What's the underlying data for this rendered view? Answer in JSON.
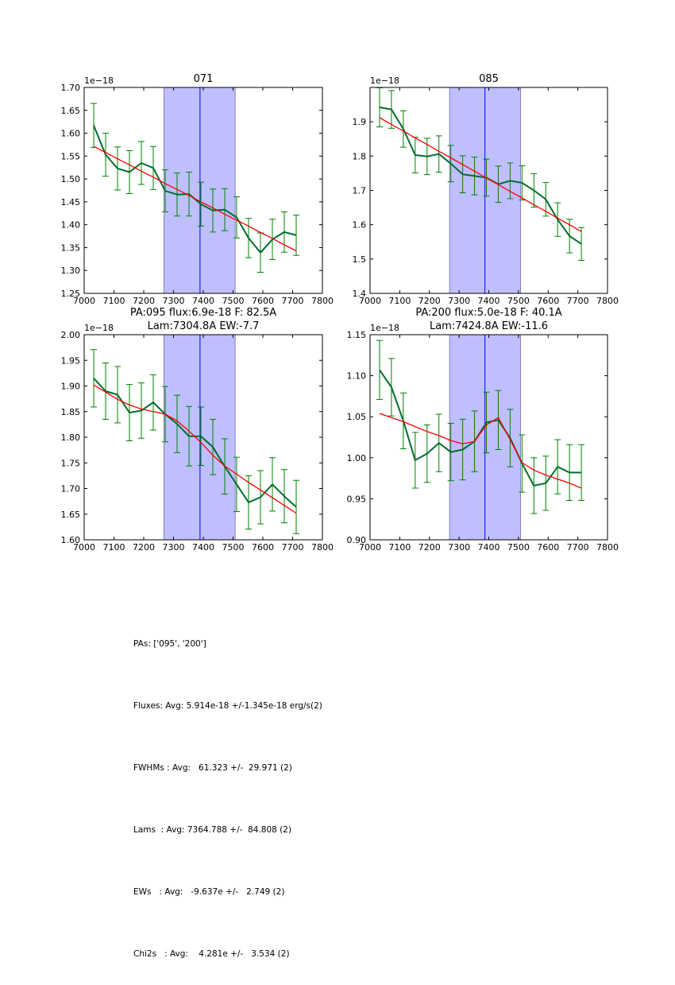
{
  "chart_data": [
    {
      "type": "line",
      "title": "071",
      "subtitle": "",
      "offset_label": "1e−18",
      "xlabel": "",
      "ylabel": "",
      "xlim": [
        7000,
        7800
      ],
      "ylim": [
        1.25,
        1.7
      ],
      "xticks": [
        "7000",
        "7100",
        "7200",
        "7300",
        "7400",
        "7500",
        "7600",
        "7700",
        "7800"
      ],
      "yticks": [
        "1.25",
        "1.30",
        "1.35",
        "1.40",
        "1.45",
        "1.50",
        "1.55",
        "1.60",
        "1.65",
        "1.70"
      ],
      "band": [
        7268,
        7507
      ],
      "center_line": 7389,
      "x": [
        7032,
        7072,
        7112,
        7152,
        7192,
        7232,
        7272,
        7312,
        7352,
        7392,
        7432,
        7472,
        7512,
        7552,
        7592,
        7632,
        7672,
        7712
      ],
      "series": [
        {
          "name": "data",
          "color": "#006e2e",
          "values": [
            1.617,
            1.553,
            1.523,
            1.515,
            1.535,
            1.524,
            1.474,
            1.466,
            1.467,
            1.445,
            1.431,
            1.433,
            1.416,
            1.371,
            1.339,
            1.368,
            1.384,
            1.377
          ],
          "errors": [
            0.048,
            0.047,
            0.047,
            0.047,
            0.047,
            0.047,
            0.046,
            0.047,
            0.048,
            0.048,
            0.047,
            0.046,
            0.045,
            0.043,
            0.043,
            0.044,
            0.044,
            0.044
          ]
        },
        {
          "name": "fit",
          "color": "#ff0000",
          "values": [
            1.571,
            1.558,
            1.544,
            1.531,
            1.517,
            1.504,
            1.49,
            1.477,
            1.464,
            1.45,
            1.437,
            1.423,
            1.41,
            1.397,
            1.383,
            1.37,
            1.356,
            1.343
          ]
        }
      ]
    },
    {
      "type": "line",
      "title": "085",
      "subtitle": "",
      "offset_label": "1e−18",
      "xlabel": "",
      "ylabel": "",
      "xlim": [
        7000,
        7800
      ],
      "ylim": [
        1.4,
        2.0
      ],
      "xticks": [
        "7000",
        "7100",
        "7200",
        "7300",
        "7400",
        "7500",
        "7600",
        "7700",
        "7800"
      ],
      "yticks": [
        "1.4",
        "1.5",
        "1.6",
        "1.7",
        "1.8",
        "1.9"
      ],
      "band": [
        7268,
        7507
      ],
      "center_line": 7387,
      "x": [
        7032,
        7072,
        7112,
        7152,
        7192,
        7232,
        7272,
        7312,
        7352,
        7392,
        7432,
        7472,
        7512,
        7552,
        7592,
        7632,
        7672,
        7712
      ],
      "series": [
        {
          "name": "data",
          "color": "#006e2e",
          "values": [
            1.942,
            1.936,
            1.879,
            1.803,
            1.799,
            1.806,
            1.778,
            1.747,
            1.742,
            1.737,
            1.718,
            1.728,
            1.722,
            1.7,
            1.674,
            1.615,
            1.567,
            1.544
          ],
          "errors": [
            0.057,
            0.055,
            0.053,
            0.052,
            0.053,
            0.053,
            0.053,
            0.054,
            0.055,
            0.054,
            0.053,
            0.052,
            0.05,
            0.049,
            0.049,
            0.049,
            0.049,
            0.048
          ]
        },
        {
          "name": "fit",
          "color": "#ff0000",
          "values": [
            1.912,
            1.892,
            1.873,
            1.853,
            1.834,
            1.814,
            1.795,
            1.775,
            1.756,
            1.736,
            1.717,
            1.697,
            1.678,
            1.658,
            1.639,
            1.619,
            1.6,
            1.58
          ]
        }
      ]
    },
    {
      "type": "line",
      "title": "PA:095 flux:6.9e-18 F: 82.5A",
      "subtitle": "Lam:7304.8A EW:-7.7",
      "offset_label": "1e−18",
      "xlabel": "",
      "ylabel": "",
      "xlim": [
        7000,
        7800
      ],
      "ylim": [
        1.6,
        2.0
      ],
      "xticks": [
        "7000",
        "7100",
        "7200",
        "7300",
        "7400",
        "7500",
        "7600",
        "7700",
        "7800"
      ],
      "yticks": [
        "1.60",
        "1.65",
        "1.70",
        "1.75",
        "1.80",
        "1.85",
        "1.90",
        "1.95",
        "2.00"
      ],
      "band": [
        7268,
        7507
      ],
      "center_line": 7389,
      "x": [
        7032,
        7072,
        7112,
        7152,
        7192,
        7232,
        7272,
        7312,
        7352,
        7392,
        7432,
        7472,
        7512,
        7552,
        7592,
        7632,
        7672,
        7712
      ],
      "series": [
        {
          "name": "data",
          "color": "#006e2e",
          "values": [
            1.915,
            1.89,
            1.883,
            1.848,
            1.852,
            1.868,
            1.845,
            1.826,
            1.802,
            1.802,
            1.781,
            1.743,
            1.708,
            1.673,
            1.683,
            1.708,
            1.685,
            1.664
          ],
          "errors": [
            0.056,
            0.055,
            0.055,
            0.055,
            0.054,
            0.054,
            0.054,
            0.056,
            0.058,
            0.057,
            0.054,
            0.054,
            0.053,
            0.052,
            0.052,
            0.052,
            0.052,
            0.052
          ]
        },
        {
          "name": "fit",
          "color": "#ff0000",
          "values": [
            1.902,
            1.888,
            1.874,
            1.863,
            1.855,
            1.85,
            1.845,
            1.832,
            1.812,
            1.79,
            1.765,
            1.744,
            1.728,
            1.712,
            1.697,
            1.682,
            1.667,
            1.652
          ]
        }
      ]
    },
    {
      "type": "line",
      "title": "PA:200 flux:5.0e-18 F: 40.1A",
      "subtitle": "Lam:7424.8A EW:-11.6",
      "offset_label": "1e−18",
      "xlabel": "",
      "ylabel": "",
      "xlim": [
        7000,
        7800
      ],
      "ylim": [
        0.9,
        1.15
      ],
      "xticks": [
        "7000",
        "7100",
        "7200",
        "7300",
        "7400",
        "7500",
        "7600",
        "7700",
        "7800"
      ],
      "yticks": [
        "0.90",
        "0.95",
        "1.00",
        "1.05",
        "1.10",
        "1.15"
      ],
      "band": [
        7268,
        7507
      ],
      "center_line": 7387,
      "x": [
        7032,
        7072,
        7112,
        7152,
        7192,
        7232,
        7272,
        7312,
        7352,
        7392,
        7432,
        7472,
        7512,
        7552,
        7592,
        7632,
        7672,
        7712
      ],
      "series": [
        {
          "name": "data",
          "color": "#006e2e",
          "values": [
            1.107,
            1.086,
            1.045,
            0.997,
            1.005,
            1.018,
            1.007,
            1.01,
            1.02,
            1.043,
            1.046,
            1.024,
            0.993,
            0.966,
            0.969,
            0.989,
            0.982,
            0.982
          ],
          "errors": [
            0.036,
            0.035,
            0.034,
            0.034,
            0.035,
            0.035,
            0.035,
            0.037,
            0.037,
            0.037,
            0.036,
            0.035,
            0.035,
            0.034,
            0.033,
            0.033,
            0.034,
            0.034
          ]
        },
        {
          "name": "fit",
          "color": "#ff0000",
          "values": [
            1.054,
            1.049,
            1.044,
            1.038,
            1.032,
            1.027,
            1.021,
            1.017,
            1.02,
            1.04,
            1.049,
            1.022,
            0.994,
            0.985,
            0.979,
            0.974,
            0.969,
            0.963
          ]
        }
      ]
    }
  ],
  "colors": {
    "band_fill": "#bfbfff",
    "band_edge": "#8080c0",
    "center_line": "#0000ff",
    "data_line": "#006e2e",
    "error_bar": "#008000",
    "fit_line": "#ff0000"
  },
  "summary": {
    "pas": "PAs: ['095', '200']",
    "fluxes": "Fluxes: Avg: 5.914e-18 +/-1.345e-18 erg/s(2)",
    "fwhms": "FWHMs : Avg:   61.323 +/-  29.971 (2)",
    "lams": "Lams  : Avg: 7364.788 +/-  84.808 (2)",
    "ews": "EWs   : Avg:   -9.637e +/-   2.749 (2)",
    "chi2s": "Chi2s   : Avg:    4.281e +/-   3.534 (2)"
  }
}
